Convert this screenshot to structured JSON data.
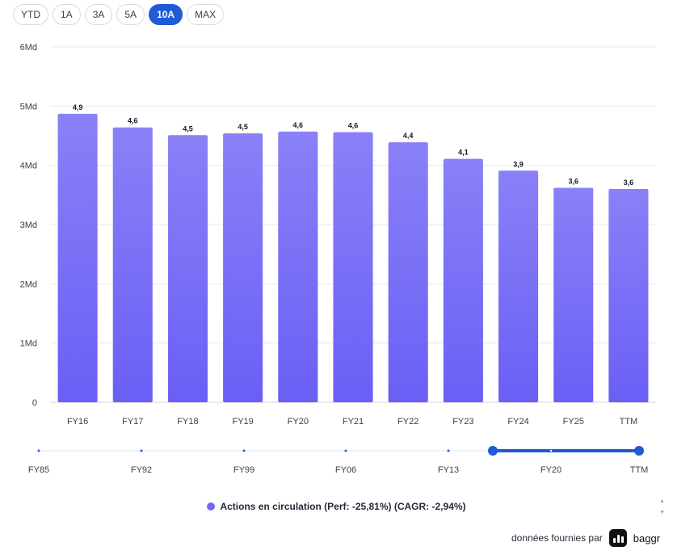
{
  "range_buttons": [
    {
      "label": "YTD",
      "active": false
    },
    {
      "label": "1A",
      "active": false
    },
    {
      "label": "3A",
      "active": false
    },
    {
      "label": "5A",
      "active": false
    },
    {
      "label": "10A",
      "active": true
    },
    {
      "label": "MAX",
      "active": false
    }
  ],
  "chart_data": {
    "type": "bar",
    "categories": [
      "FY16",
      "FY17",
      "FY18",
      "FY19",
      "FY20",
      "FY21",
      "FY22",
      "FY23",
      "FY24",
      "FY25",
      "TTM"
    ],
    "series": [
      {
        "name": "Actions en circulation (Perf: -25,81%) (CAGR: -2,94%)",
        "values": [
          4.87,
          4.64,
          4.51,
          4.54,
          4.57,
          4.56,
          4.39,
          4.11,
          3.91,
          3.62,
          3.6
        ],
        "labels": [
          "4,9",
          "4,6",
          "4,5",
          "4,5",
          "4,6",
          "4,6",
          "4,4",
          "4,1",
          "3,9",
          "3,6",
          "3,6"
        ],
        "color": "#7469f5"
      }
    ],
    "ylim": [
      0,
      6
    ],
    "y_ticks": [
      0,
      1,
      2,
      3,
      4,
      5,
      6
    ],
    "y_tick_labels": [
      "0",
      "1Md",
      "2Md",
      "3Md",
      "4Md",
      "5Md",
      "6Md"
    ],
    "grid": true,
    "legend_position": "bottom"
  },
  "navigator": {
    "labels": [
      "FY85",
      "FY92",
      "FY99",
      "FY06",
      "FY13",
      "FY20",
      "TTM"
    ],
    "selected_range": [
      "FY16",
      "TTM"
    ],
    "color": "#1f5bd6"
  },
  "legend": {
    "text": "Actions en circulation (Perf: -25,81%) (CAGR: -2,94%)",
    "color": "#7469f5"
  },
  "footer": {
    "text": "données fournies par",
    "brand": "baggr"
  }
}
